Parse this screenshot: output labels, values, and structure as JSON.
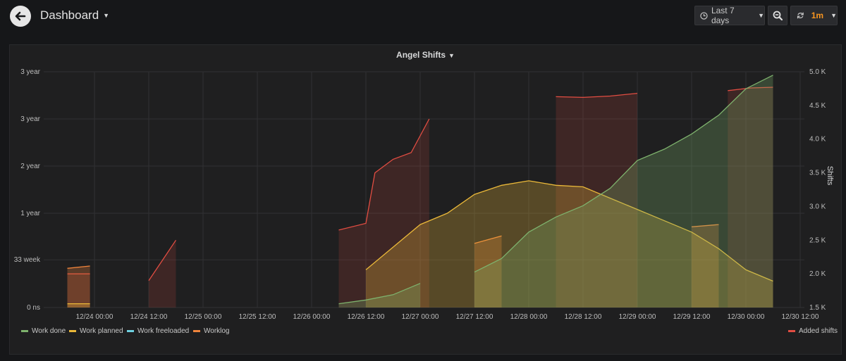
{
  "header": {
    "title": "Dashboard",
    "time_range": "Last 7 days",
    "refresh_interval": "1m",
    "icons": {
      "back": "arrow-left-icon",
      "clock": "clock-icon",
      "zoom": "zoom-out-icon",
      "refresh": "refresh-icon",
      "caret": "caret-down-icon"
    }
  },
  "panel": {
    "title": "Angel Shifts"
  },
  "chart_data": {
    "type": "area",
    "title": "Angel Shifts",
    "x_ticks": [
      "12/24 00:00",
      "12/24 12:00",
      "12/25 00:00",
      "12/25 12:00",
      "12/26 00:00",
      "12/26 12:00",
      "12/27 00:00",
      "12/27 12:00",
      "12/28 00:00",
      "12/28 12:00",
      "12/29 00:00",
      "12/29 12:00",
      "12/30 00:00",
      "12/30 12:00"
    ],
    "left_axis": {
      "ticks": [
        "0 ns",
        "33 week",
        "1 year",
        "2 year",
        "3 year",
        "3 year"
      ],
      "tick_values": [
        0,
        0.632,
        1.25,
        1.875,
        2.5,
        3.125
      ],
      "unit": "year",
      "range": [
        0,
        3.125
      ]
    },
    "right_axis": {
      "label": "Shifts",
      "ticks": [
        "1.5 K",
        "2.0 K",
        "2.5 K",
        "3.0 K",
        "3.5 K",
        "4.0 K",
        "4.5 K",
        "5.0 K"
      ],
      "range": [
        1500,
        5000
      ]
    },
    "grid": true,
    "legend_left": [
      "Work done",
      "Work planned",
      "Work freeloaded",
      "Worklog"
    ],
    "legend_right": [
      "Added shifts"
    ],
    "series": [
      {
        "name": "Added shifts",
        "axis": "right",
        "color": "#e24d42",
        "points": [
          [
            "12/23 18:00",
            2000
          ],
          [
            "12/23 23:00",
            2000
          ],
          [
            "12/24 12:00",
            1900
          ],
          [
            "12/24 15:00",
            2200
          ],
          [
            "12/24 18:00",
            2500
          ],
          [
            "12/25 12:00",
            2500
          ],
          [
            "12/25 22:00",
            2580
          ],
          [
            "12/26 06:00",
            2650
          ],
          [
            "12/26 12:00",
            2750
          ],
          [
            "12/26 14:00",
            3500
          ],
          [
            "12/26 18:00",
            3700
          ],
          [
            "12/26 22:00",
            3800
          ],
          [
            "12/27 02:00",
            4300
          ],
          [
            "12/27 12:00",
            4450
          ],
          [
            "12/27 20:00",
            4600
          ],
          [
            "12/28 06:00",
            4630
          ],
          [
            "12/28 12:00",
            4620
          ],
          [
            "12/28 18:00",
            4640
          ],
          [
            "12/29 00:00",
            4680
          ],
          [
            "12/29 12:00",
            4680
          ],
          [
            "12/29 20:00",
            4720
          ],
          [
            "12/30 01:00",
            4760
          ],
          [
            "12/30 06:00",
            4770
          ]
        ]
      },
      {
        "name": "Work done",
        "axis": "left",
        "color": "#7eb26d",
        "points": [
          [
            "12/24 12:00",
            0.01
          ],
          [
            "12/25 12:00",
            0.02
          ],
          [
            "12/26 06:00",
            0.05
          ],
          [
            "12/26 12:00",
            0.1
          ],
          [
            "12/26 18:00",
            0.17
          ],
          [
            "12/27 00:00",
            0.32
          ],
          [
            "12/27 12:00",
            0.47
          ],
          [
            "12/27 18:00",
            0.65
          ],
          [
            "12/28 00:00",
            1.0
          ],
          [
            "12/28 06:00",
            1.2
          ],
          [
            "12/28 12:00",
            1.35
          ],
          [
            "12/28 18:00",
            1.58
          ],
          [
            "12/29 00:00",
            1.95
          ],
          [
            "12/29 06:00",
            2.1
          ],
          [
            "12/29 12:00",
            2.3
          ],
          [
            "12/29 18:00",
            2.55
          ],
          [
            "12/30 00:00",
            2.9
          ],
          [
            "12/30 06:00",
            3.08
          ]
        ]
      },
      {
        "name": "Work planned",
        "axis": "left",
        "color": "#eab839",
        "points": [
          [
            "12/23 18:00",
            0.05
          ],
          [
            "12/23 23:00",
            0.05
          ],
          [
            "12/24 12:00",
            0.08
          ],
          [
            "12/25 12:00",
            0.12
          ],
          [
            "12/26 00:00",
            0.3
          ],
          [
            "12/26 12:00",
            0.5
          ],
          [
            "12/26 18:00",
            0.8
          ],
          [
            "12/27 00:00",
            1.1
          ],
          [
            "12/27 06:00",
            1.25
          ],
          [
            "12/27 12:00",
            1.5
          ],
          [
            "12/27 18:00",
            1.62
          ],
          [
            "12/28 00:00",
            1.68
          ],
          [
            "12/28 06:00",
            1.62
          ],
          [
            "12/28 12:00",
            1.6
          ],
          [
            "12/28 18:00",
            1.45
          ],
          [
            "12/29 00:00",
            1.3
          ],
          [
            "12/29 06:00",
            1.15
          ],
          [
            "12/29 12:00",
            1.0
          ],
          [
            "12/29 18:00",
            0.78
          ],
          [
            "12/30 00:00",
            0.5
          ],
          [
            "12/30 06:00",
            0.35
          ]
        ]
      },
      {
        "name": "Work freeloaded",
        "axis": "left",
        "color": "#6ed0e0",
        "points": [
          [
            "12/23 18:00",
            0.0
          ],
          [
            "12/30 06:00",
            0.0
          ]
        ]
      },
      {
        "name": "Worklog",
        "axis": "left",
        "color": "#ef843c",
        "points": [
          [
            "12/23 18:00",
            0.52
          ],
          [
            "12/23 23:00",
            0.55
          ],
          [
            "12/24 12:00",
            0.6
          ],
          [
            "12/25 12:00",
            0.65
          ],
          [
            "12/26 00:00",
            0.7
          ],
          [
            "12/26 18:00",
            0.8
          ],
          [
            "12/27 12:00",
            0.85
          ],
          [
            "12/27 18:00",
            0.95
          ],
          [
            "12/28 12:00",
            0.97
          ],
          [
            "12/29 00:00",
            1.05
          ],
          [
            "12/29 12:00",
            1.07
          ],
          [
            "12/29 18:00",
            1.1
          ],
          [
            "12/30 06:00",
            1.13
          ]
        ]
      }
    ]
  }
}
